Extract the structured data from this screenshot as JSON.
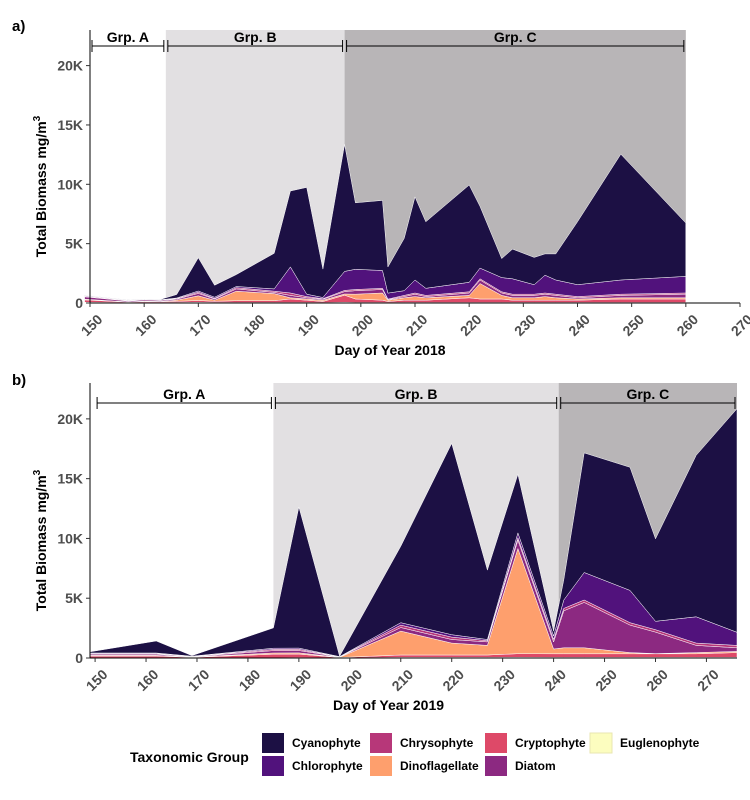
{
  "chart_data": [
    {
      "type": "area",
      "panel_tag": "a)",
      "xlabel": "Day of Year 2018",
      "ylabel": "Total Biomass mg/m",
      "ylabel_sup": "3",
      "xlim": [
        150,
        270
      ],
      "ylim": [
        0,
        23000
      ],
      "xticks": [
        150,
        160,
        170,
        180,
        190,
        200,
        210,
        220,
        230,
        240,
        250,
        260,
        270
      ],
      "yticks": [
        0,
        5000,
        10000,
        15000,
        20000
      ],
      "ytick_labels": [
        "0",
        "5K",
        "10K",
        "15K",
        "20K"
      ],
      "groups": [
        {
          "label": "Grp. A",
          "start": 150,
          "end": 164
        },
        {
          "label": "Grp. B",
          "start": 164,
          "end": 197
        },
        {
          "label": "Grp. C",
          "start": 197,
          "end": 260
        }
      ],
      "group_backgrounds": [
        {
          "start": 164,
          "end": 197,
          "color": "#e2e0e2"
        },
        {
          "start": 197,
          "end": 260,
          "color": "#b8b5b7"
        }
      ],
      "x": [
        149,
        157,
        160,
        163,
        166,
        170,
        173,
        177,
        184,
        187,
        190,
        193,
        197,
        199,
        204,
        205,
        208,
        210,
        212,
        220,
        222,
        226,
        228,
        232,
        234,
        236,
        240,
        248,
        260
      ],
      "series": [
        {
          "name": "Euglenophyte",
          "color": "#fcfdbf",
          "values": [
            60,
            30,
            40,
            40,
            40,
            60,
            40,
            40,
            40,
            40,
            40,
            30,
            60,
            40,
            40,
            30,
            40,
            40,
            40,
            40,
            40,
            40,
            40,
            40,
            40,
            40,
            40,
            40,
            40
          ]
        },
        {
          "name": "Cryptophyte",
          "color": "#de4968",
          "values": [
            200,
            50,
            80,
            80,
            100,
            150,
            100,
            150,
            150,
            300,
            200,
            100,
            600,
            300,
            200,
            100,
            200,
            200,
            200,
            400,
            300,
            300,
            200,
            200,
            200,
            200,
            200,
            300,
            300
          ]
        },
        {
          "name": "Dinoflagellate",
          "color": "#fe9f6d",
          "values": [
            60,
            10,
            30,
            10,
            100,
            400,
            100,
            800,
            600,
            100,
            100,
            100,
            100,
            400,
            600,
            100,
            200,
            300,
            200,
            200,
            1300,
            300,
            200,
            200,
            300,
            200,
            100,
            100,
            100
          ]
        },
        {
          "name": "Diatom",
          "color": "#8c2981",
          "values": [
            200,
            80,
            100,
            80,
            80,
            200,
            100,
            200,
            100,
            200,
            100,
            80,
            200,
            300,
            300,
            50,
            100,
            200,
            100,
            200,
            300,
            200,
            200,
            200,
            200,
            200,
            100,
            200,
            300
          ]
        },
        {
          "name": "Chrysophyte",
          "color": "#b73779",
          "values": [
            50,
            30,
            30,
            30,
            50,
            100,
            50,
            100,
            100,
            200,
            100,
            50,
            100,
            100,
            100,
            50,
            100,
            100,
            100,
            100,
            100,
            100,
            100,
            100,
            100,
            100,
            100,
            100,
            100
          ]
        },
        {
          "name": "Chlorophyte",
          "color": "#51127c",
          "values": [
            50,
            30,
            30,
            30,
            50,
            100,
            100,
            100,
            200,
            2200,
            200,
            100,
            1600,
            1700,
            1500,
            500,
            400,
            1100,
            600,
            800,
            900,
            1200,
            1300,
            800,
            1500,
            1200,
            1000,
            1200,
            1400
          ]
        },
        {
          "name": "Cyanophyte",
          "color": "#1c1044",
          "values": [
            30,
            30,
            30,
            30,
            300,
            2800,
            1000,
            1000,
            3000,
            6400,
            9000,
            2400,
            10700,
            5600,
            5900,
            2200,
            4400,
            7000,
            5600,
            8200,
            5200,
            1600,
            2500,
            2300,
            1800,
            2200,
            5300,
            10600,
            4500
          ]
        }
      ]
    },
    {
      "type": "area",
      "panel_tag": "b)",
      "xlabel": "Day of Year 2019",
      "ylabel": "Total Biomass mg/m",
      "ylabel_sup": "3",
      "xlim": [
        149,
        276
      ],
      "ylim": [
        0,
        23000
      ],
      "xticks": [
        150,
        160,
        170,
        180,
        190,
        200,
        210,
        220,
        230,
        240,
        250,
        260,
        270
      ],
      "yticks": [
        0,
        5000,
        10000,
        15000,
        20000
      ],
      "ytick_labels": [
        "0",
        "5K",
        "10K",
        "15K",
        "20K"
      ],
      "groups": [
        {
          "label": "Grp. A",
          "start": 150,
          "end": 185
        },
        {
          "label": "Grp. B",
          "start": 185,
          "end": 241
        },
        {
          "label": "Grp. C",
          "start": 241,
          "end": 276
        }
      ],
      "group_backgrounds": [
        {
          "start": 185,
          "end": 241,
          "color": "#e2e0e2"
        },
        {
          "start": 241,
          "end": 276,
          "color": "#b8b5b7"
        }
      ],
      "x": [
        149,
        162,
        169,
        185,
        190,
        198,
        210,
        220,
        227,
        233,
        240,
        242,
        246,
        255,
        260,
        268,
        276
      ],
      "series": [
        {
          "name": "Euglenophyte",
          "color": "#fcfdbf",
          "values": [
            20,
            20,
            10,
            20,
            30,
            10,
            50,
            50,
            50,
            60,
            50,
            50,
            50,
            50,
            50,
            50,
            50
          ]
        },
        {
          "name": "Cryptophyte",
          "color": "#de4968",
          "values": [
            150,
            150,
            50,
            300,
            300,
            30,
            200,
            200,
            200,
            300,
            300,
            300,
            300,
            300,
            300,
            300,
            400
          ]
        },
        {
          "name": "Dinoflagellate",
          "color": "#fe9f6d",
          "values": [
            50,
            50,
            20,
            100,
            100,
            20,
            2000,
            1000,
            800,
            8800,
            400,
            500,
            500,
            100,
            20,
            100,
            100
          ]
        },
        {
          "name": "Diatom",
          "color": "#8c2981",
          "values": [
            100,
            100,
            30,
            200,
            200,
            20,
            300,
            300,
            300,
            700,
            600,
            3100,
            3800,
            2300,
            1800,
            600,
            300
          ]
        },
        {
          "name": "Chrysophyte",
          "color": "#b73779",
          "values": [
            50,
            50,
            20,
            100,
            100,
            20,
            200,
            200,
            100,
            200,
            200,
            200,
            200,
            200,
            200,
            200,
            200
          ]
        },
        {
          "name": "Chlorophyte",
          "color": "#51127c",
          "values": [
            50,
            50,
            20,
            100,
            100,
            20,
            200,
            200,
            100,
            400,
            300,
            700,
            2300,
            2700,
            700,
            2200,
            1100
          ]
        },
        {
          "name": "Cyanophyte",
          "color": "#1c1044",
          "values": [
            100,
            1000,
            50,
            1700,
            11800,
            20,
            6400,
            16000,
            5800,
            4900,
            400,
            1700,
            10000,
            10300,
            6900,
            13500,
            18700
          ]
        }
      ]
    }
  ],
  "legend": {
    "title": "Taxonomic Group",
    "items": [
      {
        "name": "Cyanophyte",
        "color": "#1c1044"
      },
      {
        "name": "Chlorophyte",
        "color": "#51127c"
      },
      {
        "name": "Chrysophyte",
        "color": "#b73779"
      },
      {
        "name": "Dinoflagellate",
        "color": "#fe9f6d"
      },
      {
        "name": "Cryptophyte",
        "color": "#de4968"
      },
      {
        "name": "Diatom",
        "color": "#8c2981"
      },
      {
        "name": "Euglenophyte",
        "color": "#fcfdbf"
      }
    ]
  }
}
